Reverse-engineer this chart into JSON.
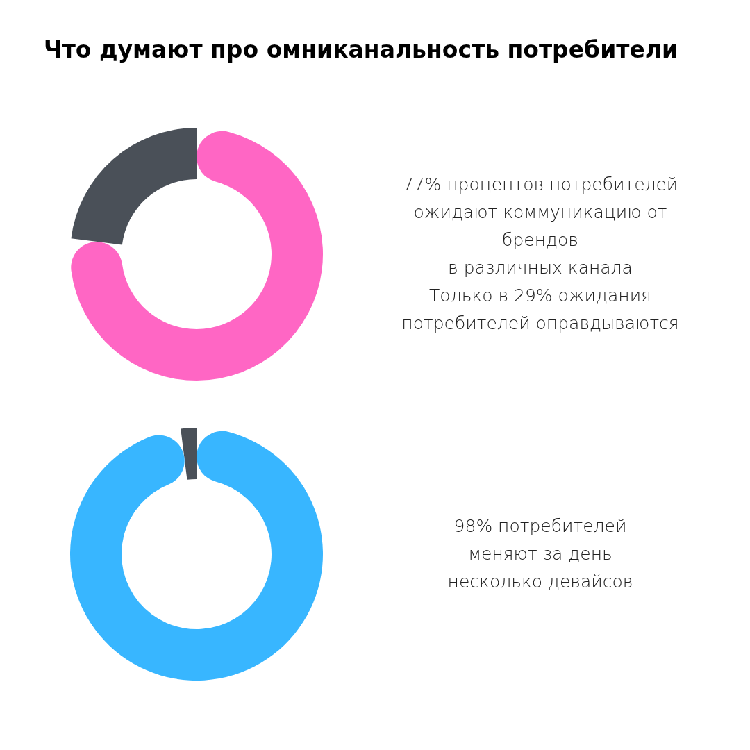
{
  "chart_data": [
    {
      "type": "donut",
      "title": "Что думают про омниканальность потребители",
      "categories": [
        null,
        null
      ],
      "values": [
        77,
        23
      ],
      "colors": [
        "#ff66c4",
        "#4a5058"
      ],
      "annotations": [
        "77% процентов потребителей",
        "ожидают коммуникацию от",
        "брендов",
        "в различных канала",
        "Только в 29% ожидания",
        "потребителей оправдываются"
      ]
    },
    {
      "type": "donut",
      "categories": [
        null,
        null
      ],
      "values": [
        98,
        2
      ],
      "colors": [
        "#38b6ff",
        "#4a5058"
      ],
      "annotations": [
        "98% потребителей",
        "меняют за день",
        "несколько девайсов"
      ]
    }
  ]
}
